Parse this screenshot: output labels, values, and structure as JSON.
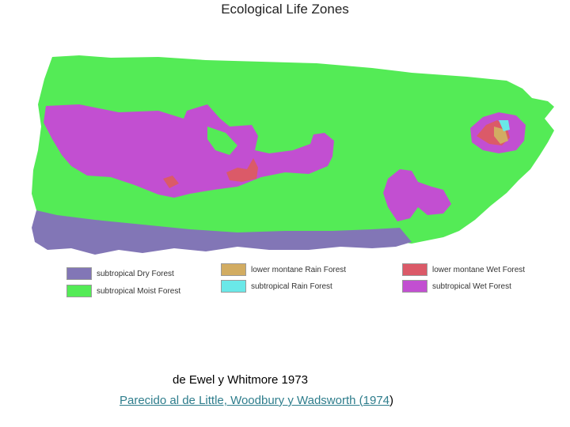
{
  "title": "Ecological Life Zones",
  "colors": {
    "dry": "#8276b6",
    "moist": "#54eb56",
    "lower_rain": "#d2ac62",
    "rain": "#6ae8e8",
    "lower_wet": "#db5a68",
    "wet": "#c24fd1"
  },
  "legend": [
    {
      "label": "subtropical Dry Forest",
      "color": "#8276b6"
    },
    {
      "label": "subtropical Moist Forest",
      "color": "#54eb56"
    },
    {
      "label": "lower montane Rain Forest",
      "color": "#d2ac62"
    },
    {
      "label": "subtropical Rain Forest",
      "color": "#6ae8e8"
    },
    {
      "label": "lower montane Wet Forest",
      "color": "#db5a68"
    },
    {
      "label": "subtropical Wet Forest",
      "color": "#c24fd1"
    }
  ],
  "credit": "de Ewel y Whitmore 1973",
  "reference": {
    "prefix": "Parecido al de Little, Woodbury y Wadsworth (",
    "year": "1974",
    "suffix": ")"
  }
}
